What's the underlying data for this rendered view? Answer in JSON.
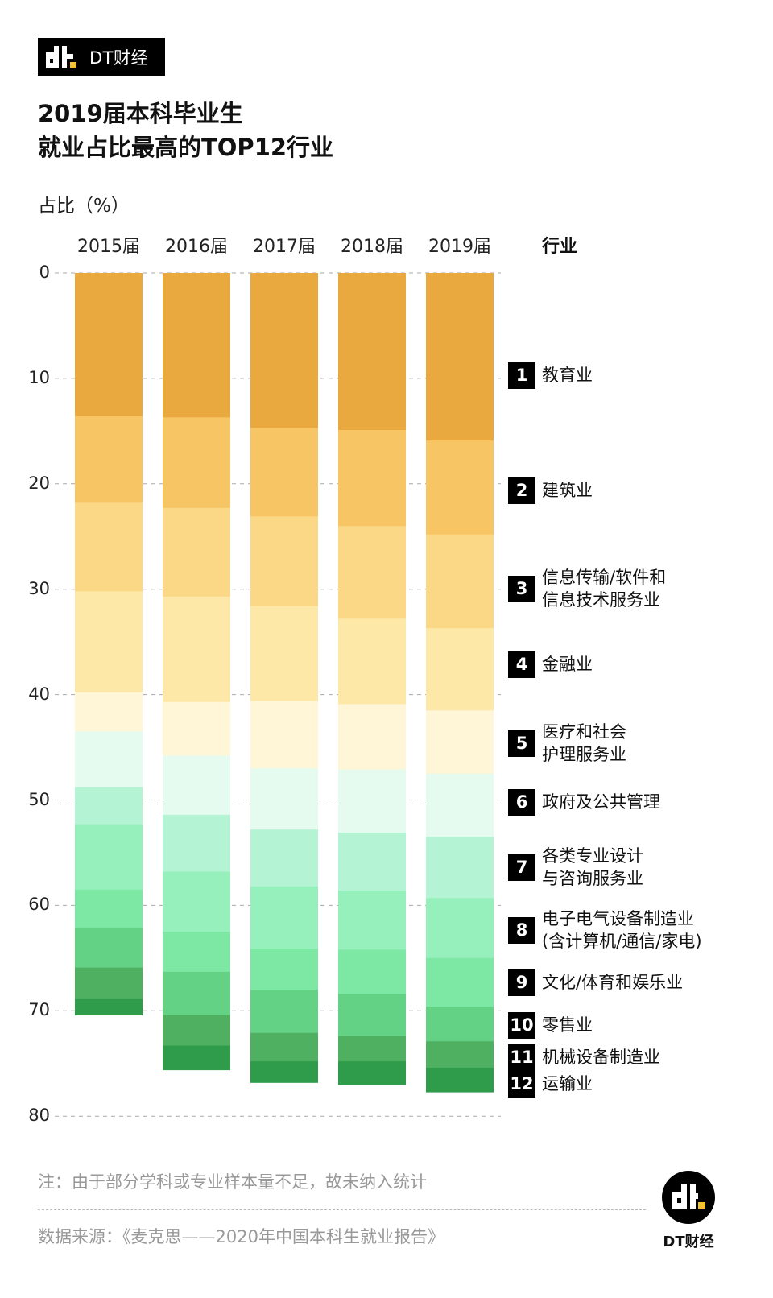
{
  "brand": {
    "name": "DT财经"
  },
  "footer_logo": {
    "name": "DT财经"
  },
  "note": "注：由于部分学科或专业样本量不足，故未纳入统计",
  "source": "数据来源：《麦克思——2020年中国本科生就业报告》",
  "chart_data": {
    "type": "bar",
    "stacked": true,
    "title_lines": [
      "2019届本科毕业生",
      "就业占比最高的TOP12行业"
    ],
    "ylabel": "占比（%）",
    "legend_title": "行业",
    "legend_placement": "right",
    "yaxis_inverted": true,
    "ylim": [
      0,
      80
    ],
    "yticks": [
      0,
      10,
      20,
      30,
      40,
      50,
      60,
      70,
      80
    ],
    "grid": true,
    "categories": [
      "2015届",
      "2016届",
      "2017届",
      "2018届",
      "2019届"
    ],
    "series": [
      {
        "rank": "1",
        "name": "教育业",
        "color": "#e9a93f",
        "values": [
          13.6,
          13.7,
          14.7,
          14.9,
          15.9
        ]
      },
      {
        "rank": "2",
        "name": "建筑业",
        "color": "#f8c564",
        "values": [
          8.2,
          8.6,
          8.4,
          9.1,
          8.9
        ]
      },
      {
        "rank": "3",
        "name": "信息传输/软件和\n信息技术服务业",
        "color": "#fbd886",
        "values": [
          8.4,
          8.4,
          8.5,
          8.8,
          8.9
        ]
      },
      {
        "rank": "4",
        "name": "金融业",
        "color": "#fde8a8",
        "values": [
          9.6,
          10.0,
          9.0,
          8.1,
          7.8
        ]
      },
      {
        "rank": "5",
        "name": "医疗和社会\n护理服务业",
        "color": "#fef6d6",
        "values": [
          3.7,
          5.1,
          6.4,
          6.2,
          6.0
        ]
      },
      {
        "rank": "6",
        "name": "政府及公共管理",
        "color": "#e6fbf0",
        "values": [
          5.3,
          5.6,
          5.8,
          6.0,
          6.0
        ]
      },
      {
        "rank": "7",
        "name": "各类专业设计\n与咨询服务业",
        "color": "#b4f4d4",
        "values": [
          3.5,
          5.4,
          5.4,
          5.5,
          5.8
        ]
      },
      {
        "rank": "8",
        "name": "电子电气设备制造业\n(含计算机/通信/家电)",
        "color": "#96f0bc",
        "values": [
          6.2,
          5.7,
          5.9,
          5.6,
          5.7
        ]
      },
      {
        "rank": "9",
        "name": "文化/体育和娱乐业",
        "color": "#7ce8a4",
        "values": [
          3.6,
          3.8,
          3.9,
          4.2,
          4.6
        ]
      },
      {
        "rank": "10",
        "name": "零售业",
        "color": "#64d284",
        "values": [
          3.8,
          4.1,
          4.1,
          4.0,
          3.3
        ]
      },
      {
        "rank": "11",
        "name": "机械设备制造业",
        "color": "#4eb060",
        "values": [
          3.0,
          2.9,
          2.7,
          2.4,
          2.5
        ]
      },
      {
        "rank": "12",
        "name": "运输业",
        "color": "#2e9c4a",
        "values": [
          1.5,
          2.3,
          2.0,
          2.2,
          2.3
        ]
      }
    ]
  }
}
